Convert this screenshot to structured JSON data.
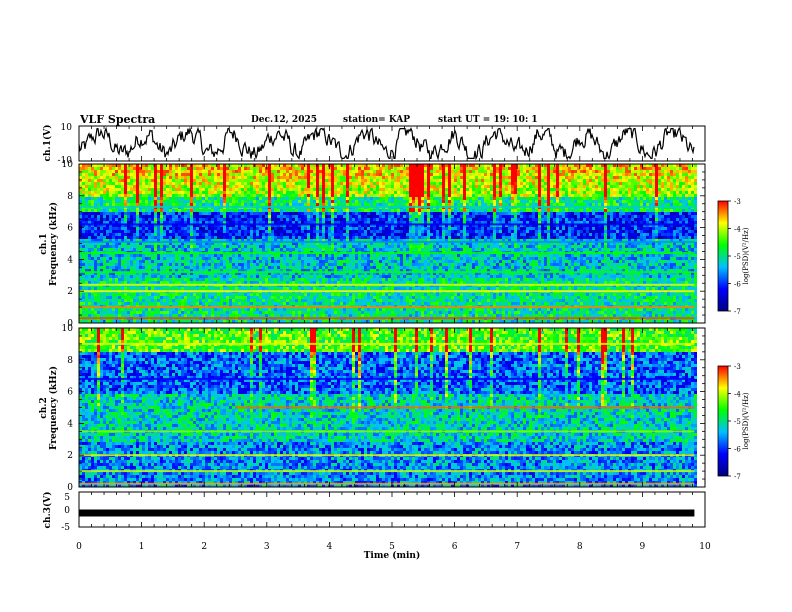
{
  "header": {
    "title": "VLF Spectra",
    "date": "Dec.12, 2025",
    "station": "station= KAP",
    "start": "start  UT =   19: 10: 1"
  },
  "colors": {
    "spectrogram_scale": [
      "#000080",
      "#0000ff",
      "#00c0ff",
      "#00ff00",
      "#ffff00",
      "#ff0000"
    ],
    "waveform_line": "#000000"
  },
  "chart_data": [
    {
      "type": "line",
      "name": "ch1-waveform",
      "ylabel": "ch.1(V)",
      "ylim": [
        -10,
        10
      ],
      "yticks": [
        "10",
        "-10"
      ],
      "xlim": [
        0,
        10
      ],
      "series": [
        {
          "name": "ch.1",
          "description": "noisy waveform oscillating near 0 V"
        }
      ]
    },
    {
      "type": "heatmap",
      "name": "ch1-spectrogram",
      "ylabel": "ch.1\nFrequency (kHz)",
      "ylim": [
        0,
        10
      ],
      "yticks": [
        "0",
        "2",
        "4",
        "6",
        "8",
        "10"
      ],
      "xlim": [
        0,
        9.83
      ],
      "colorbar": {
        "label": "log(PSD)(V²/Hz)",
        "range": [
          -7,
          -3
        ],
        "ticks": [
          "-3",
          "-4",
          "-5",
          "-6",
          "-7"
        ]
      },
      "bands": [
        {
          "freq_khz": 0.3,
          "level": -3.2
        },
        {
          "freq_khz": 1.0,
          "level": -3.4
        },
        {
          "freq_khz": 2.0,
          "level": -3.8
        },
        {
          "freq_khz": 2.4,
          "level": -3.9
        },
        {
          "freq_khz": 3.2,
          "level": -4.6
        },
        {
          "freq_khz": 4.4,
          "level": -4.6
        },
        {
          "freq_khz": 5.1,
          "level": -5.6
        },
        {
          "freq_khz": 6.2,
          "level": -6.3
        },
        {
          "freq_khz": 7.3,
          "level": -5.2
        }
      ]
    },
    {
      "type": "heatmap",
      "name": "ch2-spectrogram",
      "ylabel": "ch.2\nFrequency (kHz)",
      "ylim": [
        0,
        10
      ],
      "yticks": [
        "0",
        "2",
        "4",
        "6",
        "8",
        "10"
      ],
      "xlim": [
        0,
        9.83
      ],
      "colorbar": {
        "label": "log(PSD)(V²/Hz)",
        "range": [
          -7,
          -3
        ],
        "ticks": [
          "-3",
          "-4",
          "-5",
          "-6",
          "-7"
        ]
      },
      "bands": [
        {
          "freq_khz": 0.2,
          "level": -3.5
        },
        {
          "freq_khz": 1.0,
          "level": -4.0
        },
        {
          "freq_khz": 2.0,
          "level": -3.9
        },
        {
          "freq_khz": 3.5,
          "level": -4.2
        },
        {
          "freq_khz": 5.0,
          "level": -3.3,
          "from_min": 2.5
        },
        {
          "freq_khz": 6.8,
          "level": -6.2
        },
        {
          "freq_khz": 9.0,
          "level": -3.9
        }
      ]
    },
    {
      "type": "line",
      "name": "ch3-trace",
      "ylabel": "ch.3(V)",
      "ylim": [
        -5,
        5
      ],
      "yticks": [
        "5",
        "0",
        "-5"
      ],
      "xlim": [
        0,
        9.83
      ],
      "xlabel": "Time  (min)",
      "xticks": [
        "0",
        "1",
        "2",
        "3",
        "4",
        "5",
        "6",
        "7",
        "8",
        "9",
        "10"
      ],
      "series": [
        {
          "name": "ch.3",
          "description": "flat thick trace at about -1 V"
        }
      ]
    }
  ]
}
